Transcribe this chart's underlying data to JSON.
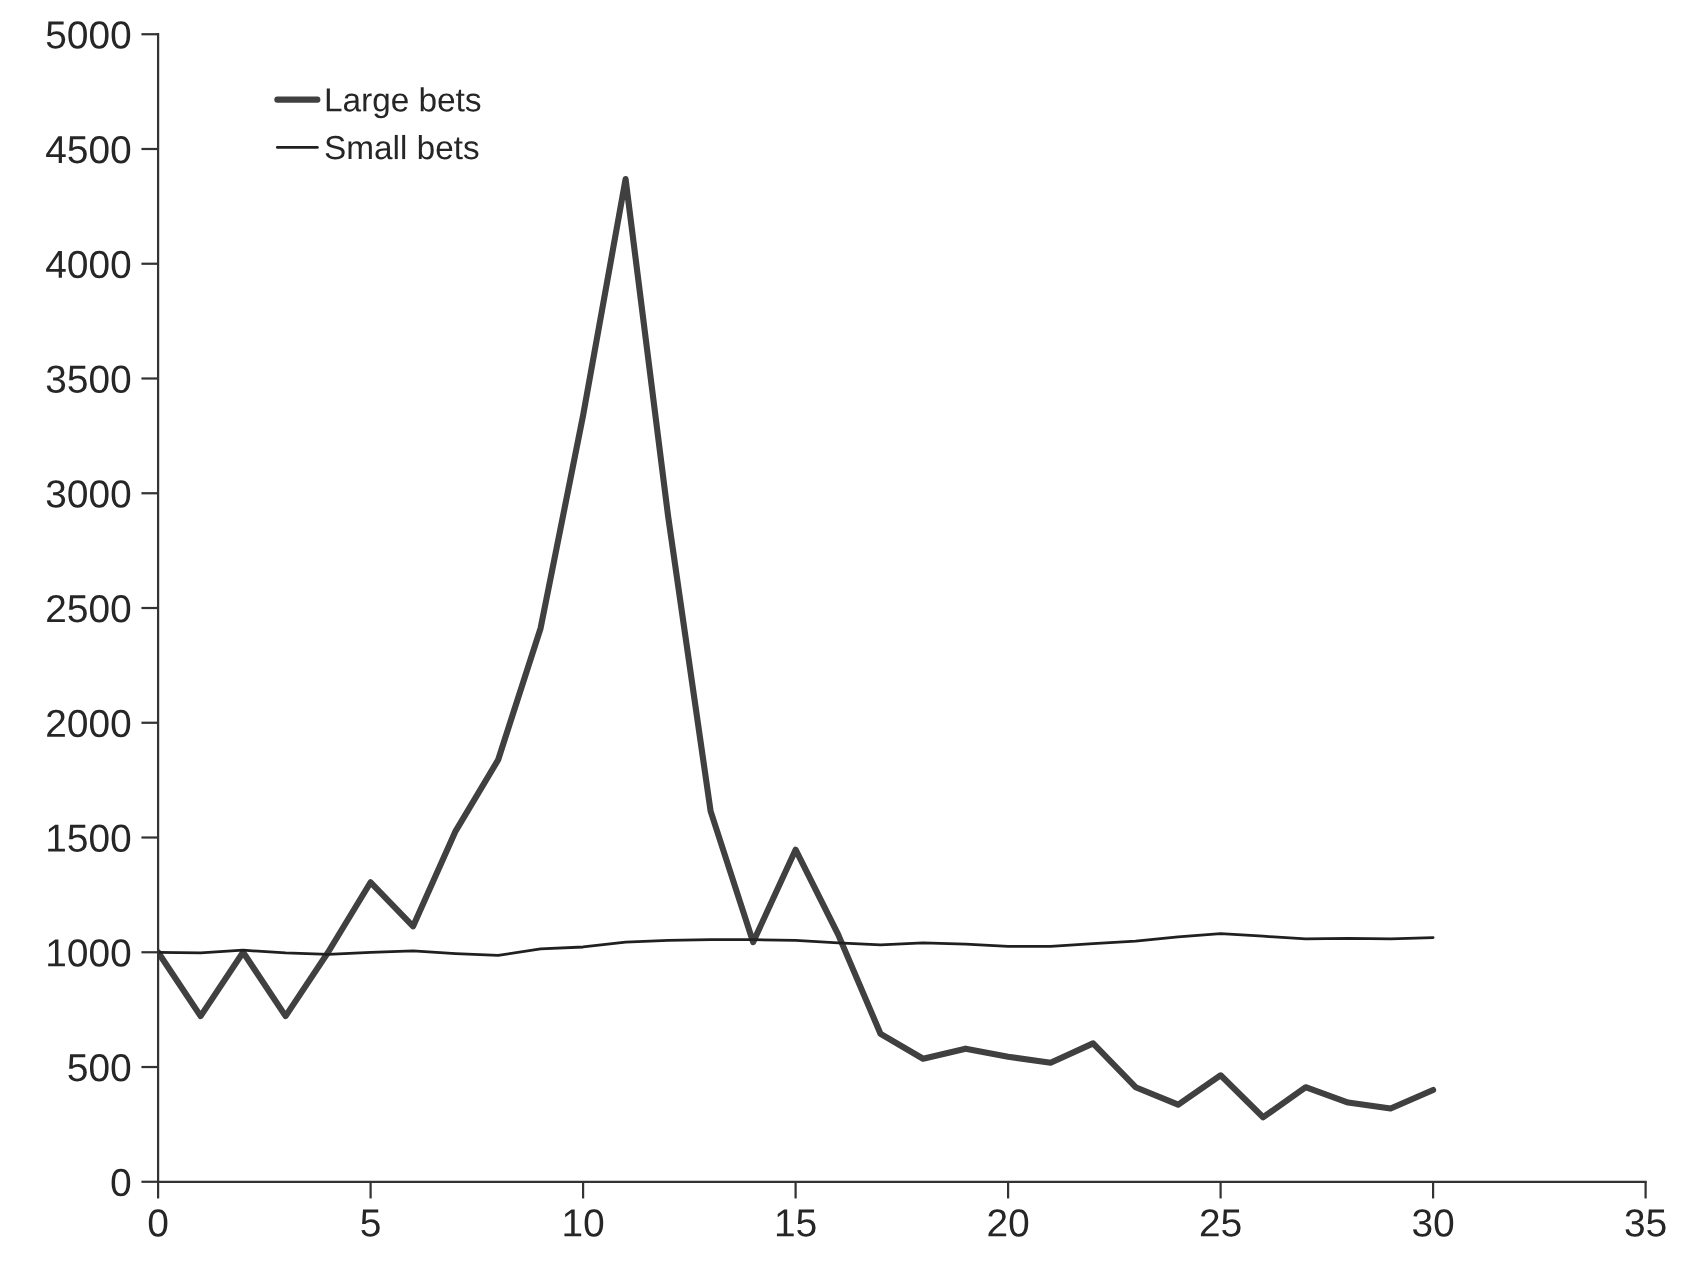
{
  "chart_data": {
    "type": "line",
    "x": [
      0,
      1,
      2,
      3,
      4,
      5,
      6,
      7,
      8,
      9,
      10,
      11,
      12,
      13,
      14,
      15,
      16,
      17,
      18,
      19,
      20,
      21,
      22,
      23,
      24,
      25,
      26,
      27,
      28,
      29,
      30
    ],
    "series": [
      {
        "name": "Large bets",
        "color": "#404040",
        "values": [
          1000,
          722,
          1000,
          722,
          1000,
          1305,
          1113,
          1528,
          1838,
          2412,
          3339,
          4369,
          2900,
          1615,
          1044,
          1447,
          1078,
          644,
          536,
          580,
          545,
          519,
          603,
          412,
          336,
          464,
          281,
          412,
          345,
          319,
          400
        ]
      },
      {
        "name": "Small bets",
        "color": "#202020",
        "values": [
          1000,
          997,
          1009,
          997,
          991,
          1000,
          1006,
          994,
          986,
          1015,
          1023,
          1044,
          1052,
          1055,
          1055,
          1052,
          1041,
          1032,
          1041,
          1035,
          1026,
          1026,
          1038,
          1049,
          1067,
          1081,
          1070,
          1058,
          1061,
          1058,
          1064
        ]
      }
    ],
    "xlim": [
      0,
      35
    ],
    "xticks": [
      0,
      5,
      10,
      15,
      20,
      25,
      30,
      35
    ],
    "ylim": [
      0,
      5000
    ],
    "yticks": [
      0,
      500,
      1000,
      1500,
      2000,
      2500,
      3000,
      3500,
      4000,
      4500,
      5000
    ],
    "legend": "top left",
    "grid": false
  }
}
